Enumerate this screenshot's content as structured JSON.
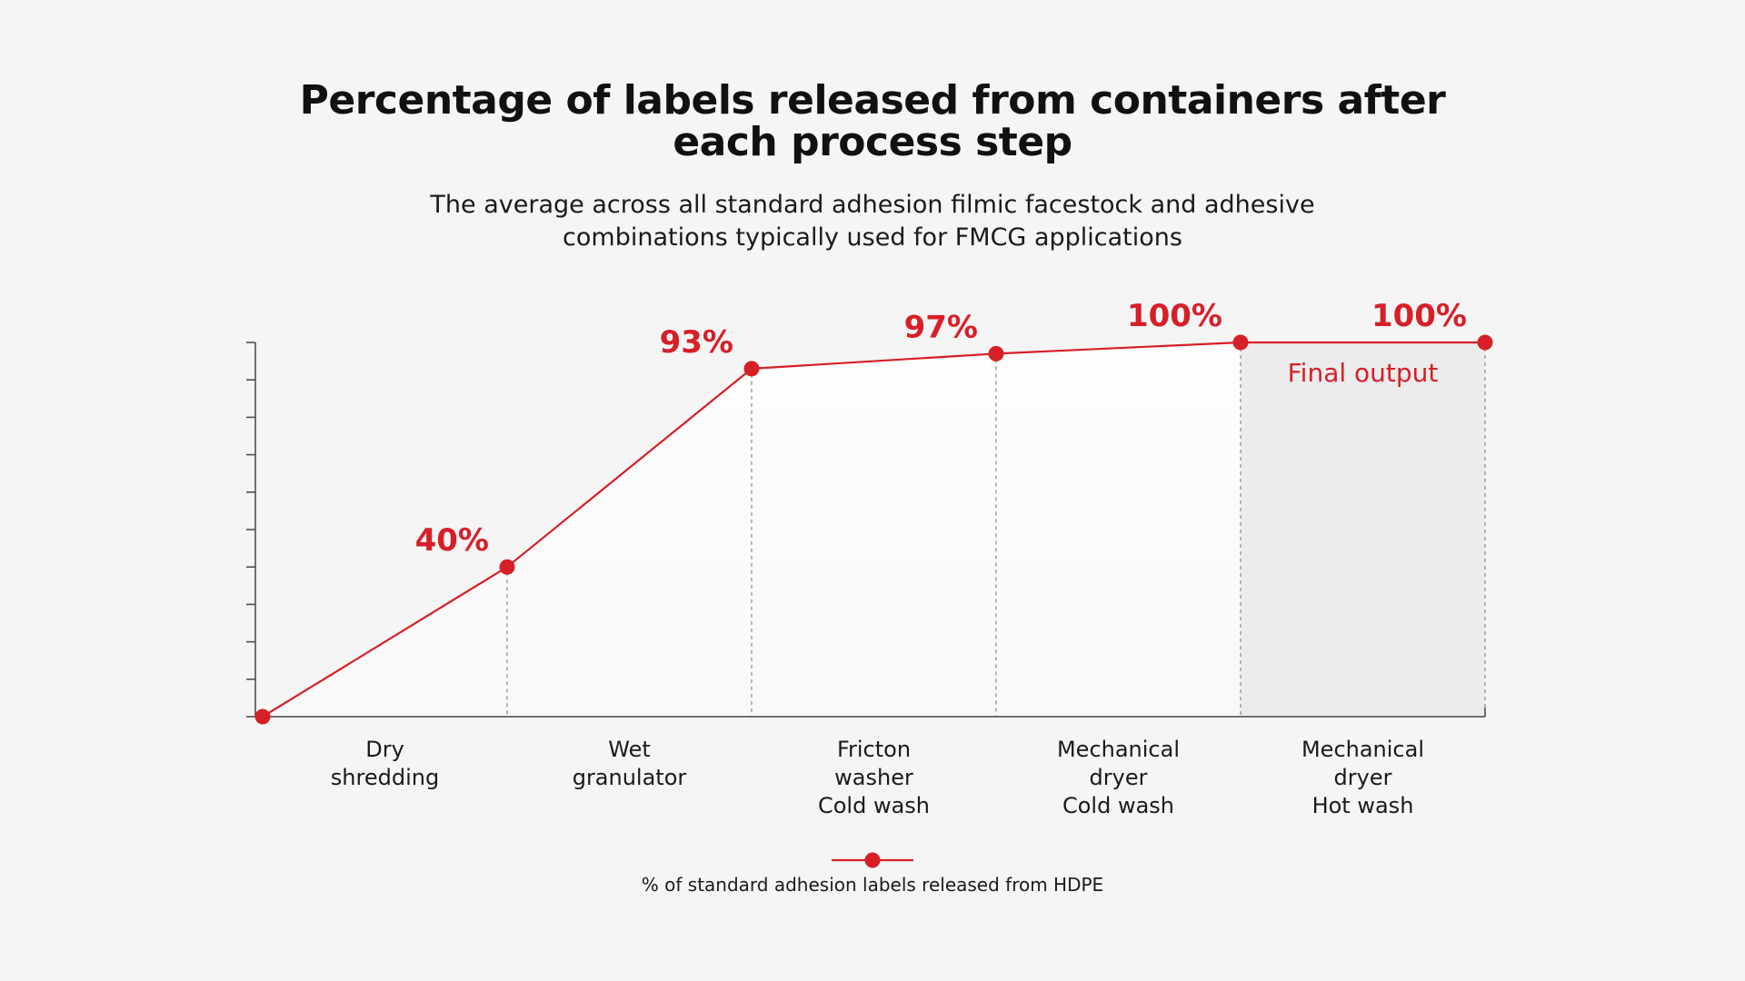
{
  "title_lines": [
    "Percentage of labels released from containers after",
    "each process step"
  ],
  "subtitle_lines": [
    "The average across all standard adhesion filmic facestock and adhesive",
    "combinations typically used for FMCG applications"
  ],
  "colors": {
    "series": "#d71f27",
    "axis": "#444444",
    "guide": "#888888",
    "final_band": "#ececec",
    "background": "#f5f5f5"
  },
  "annotation": "Final output",
  "chart_data": {
    "type": "line",
    "title": "Percentage of labels released from containers after each process step",
    "subtitle": "The average across all standard adhesion filmic facestock and adhesive combinations typically used for FMCG applications",
    "x": [
      "",
      "Dry shredding",
      "Wet granulator",
      "Fricton washer Cold wash",
      "Mechanical dryer Cold wash",
      "Mechanical dryer Hot wash"
    ],
    "categories": [
      [
        "Dry",
        "shredding"
      ],
      [
        "Wet",
        "granulator"
      ],
      [
        "Fricton",
        "washer",
        "Cold wash"
      ],
      [
        "Mechanical",
        "dryer",
        "Cold wash"
      ],
      [
        "Mechanical",
        "dryer",
        "Hot wash"
      ]
    ],
    "series": [
      {
        "name": "% of standard adhesion labels released from HDPE",
        "values": [
          0,
          40,
          93,
          97,
          100,
          100
        ],
        "data_labels": [
          "",
          "40%",
          "93%",
          "97%",
          "100%",
          "100%"
        ]
      }
    ],
    "ylim": [
      0,
      100
    ],
    "y_ticks": [
      0,
      10,
      20,
      30,
      40,
      50,
      60,
      70,
      80,
      90,
      100
    ],
    "y_tick_labels_shown": false,
    "grid": false,
    "highlight": {
      "from_index": 4,
      "to_index": 5,
      "label": "Final output"
    },
    "legend": {
      "position": "bottom-center",
      "entries": [
        "% of standard adhesion labels released from HDPE"
      ]
    }
  }
}
